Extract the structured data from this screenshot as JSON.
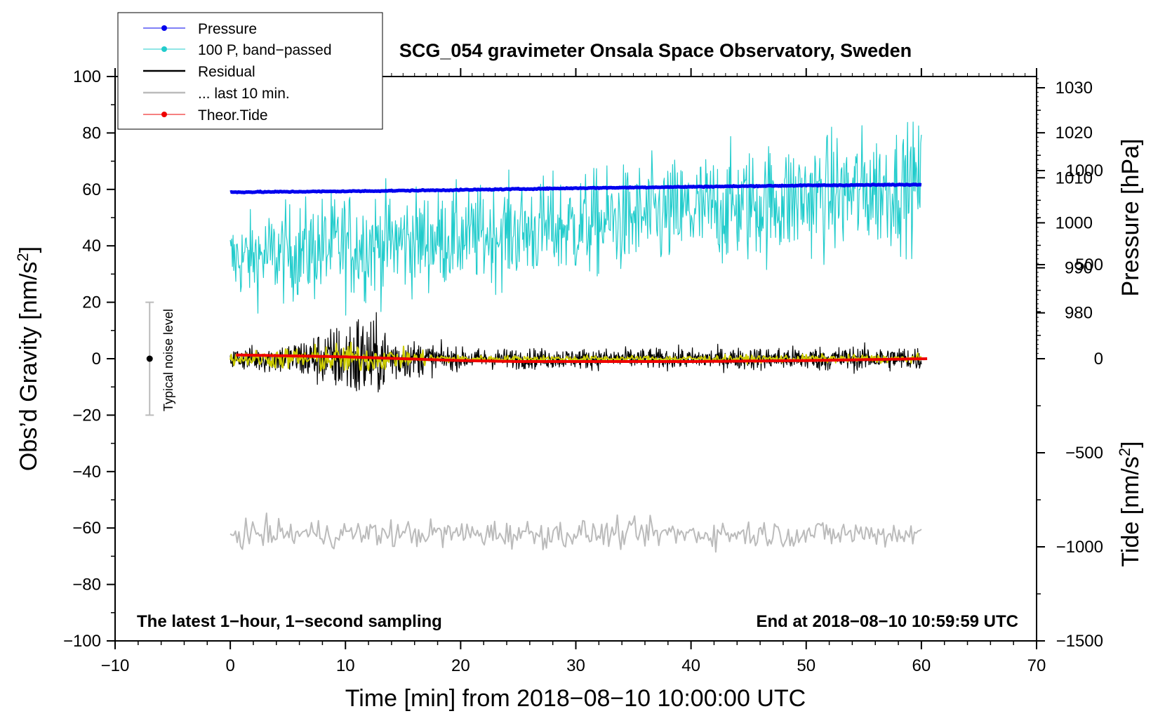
{
  "chart_data": {
    "type": "line",
    "title": "SCG_054 gravimeter Onsala Space Observatory, Sweden",
    "xlabel": "Time [min] from 2018−08−10 10:00:00 UTC",
    "ylabel_left_main": "Obs’d Gravity [nm/s",
    "ylabel_left_sup": "2",
    "ylabel_left_end": "]",
    "ylabel_right_pressure": "Pressure [hPa]",
    "ylabel_right_tide_main": "Tide [nm/s",
    "ylabel_right_tide_sup": "2",
    "ylabel_right_tide_end": "]",
    "xlim": [
      -10,
      70
    ],
    "ylim": [
      -100,
      100
    ],
    "pressure_ylim": [
      969.5,
      1032.5
    ],
    "tide_ylim": [
      -1500,
      1500
    ],
    "x_ticks": [
      -10,
      0,
      10,
      20,
      30,
      40,
      50,
      60,
      70
    ],
    "x_tick_labels": [
      "−10",
      "0",
      "10",
      "20",
      "30",
      "40",
      "50",
      "60",
      "70"
    ],
    "y_ticks": [
      100,
      80,
      60,
      40,
      20,
      0,
      -20,
      -40,
      -60,
      -80,
      -100
    ],
    "y_tick_labels": [
      "100",
      "80",
      "60",
      "40",
      "20",
      "0",
      "−20",
      "−40",
      "−60",
      "−80",
      "−100"
    ],
    "pressure_ticks": [
      980,
      990,
      1000,
      1010,
      1020,
      1030
    ],
    "pressure_tick_labels": [
      "980",
      "990",
      "1000",
      "1010",
      "1020",
      "1030"
    ],
    "tide_ticks": [
      1000,
      500,
      0,
      -500,
      -1000,
      -1500
    ],
    "tide_tick_labels": [
      "1000",
      "500",
      "0",
      "−500",
      "−1000",
      "−1500"
    ],
    "annotation_left": "The latest 1−hour, 1−second sampling",
    "annotation_right": "End at 2018−08−10 10:59:59 UTC",
    "noise_label": "Typical noise level",
    "noise_bar": {
      "x": -7,
      "center": 0,
      "low": -20,
      "high": 20
    },
    "legend": [
      {
        "label": "Pressure",
        "color": "#0000ee",
        "style": "line-dot"
      },
      {
        "label": "100 P, band−passed",
        "color": "#22cccc",
        "style": "line-dot"
      },
      {
        "label": "Residual",
        "color": "#000000",
        "style": "line"
      },
      {
        "label": "... last 10 min.",
        "color": "#bbbbbb",
        "style": "line"
      },
      {
        "label": "Theor.Tide",
        "color": "#ee0000",
        "style": "line-dot"
      }
    ],
    "series": [
      {
        "name": "Pressure",
        "color": "#0000ee",
        "axis": "pressure",
        "x": [
          0,
          10,
          20,
          30,
          40,
          50,
          60
        ],
        "values": [
          1006.8,
          1007.0,
          1007.3,
          1007.7,
          1008.0,
          1008.3,
          1008.5
        ]
      },
      {
        "name": "100 P, band−passed",
        "color": "#22cccc",
        "axis": "gravity",
        "x": [
          0,
          10,
          20,
          30,
          40,
          50,
          60
        ],
        "values": [
          35,
          40,
          43,
          47,
          52,
          57,
          62
        ],
        "noise_amplitude": [
          10,
          14,
          12,
          13,
          14,
          15,
          15
        ]
      },
      {
        "name": "Residual",
        "color": "#000000",
        "axis": "gravity",
        "x": [
          0,
          5,
          10,
          11,
          15,
          20,
          30,
          40,
          50,
          60
        ],
        "values": [
          0,
          0,
          0,
          0,
          0,
          0,
          0,
          0,
          0,
          0
        ],
        "noise_amplitude": [
          2.5,
          4,
          9,
          12,
          5,
          2.5,
          2.5,
          2.5,
          3,
          3
        ]
      },
      {
        "name": "Residual (smoothed)",
        "color": "#cccc00",
        "axis": "gravity",
        "x": [
          0,
          10,
          20,
          30,
          40,
          50,
          60
        ],
        "values": [
          0,
          0,
          0,
          0,
          0,
          0,
          0
        ],
        "noise_amplitude": [
          1.5,
          4,
          0.8,
          0.8,
          0.8,
          1,
          1
        ]
      },
      {
        "name": "... last 10 min.",
        "color": "#bbbbbb",
        "axis": "gravity",
        "x": [
          0,
          60
        ],
        "values": [
          -62,
          -62
        ],
        "noise_amplitude": [
          3.5,
          3.5
        ]
      },
      {
        "name": "Theor.Tide",
        "color": "#ee0000",
        "axis": "tide",
        "x": [
          0.5,
          10,
          20,
          25,
          30,
          40,
          50,
          60.5
        ],
        "values": [
          20,
          10,
          -10,
          -15,
          -15,
          -15,
          -10,
          0
        ]
      }
    ]
  }
}
